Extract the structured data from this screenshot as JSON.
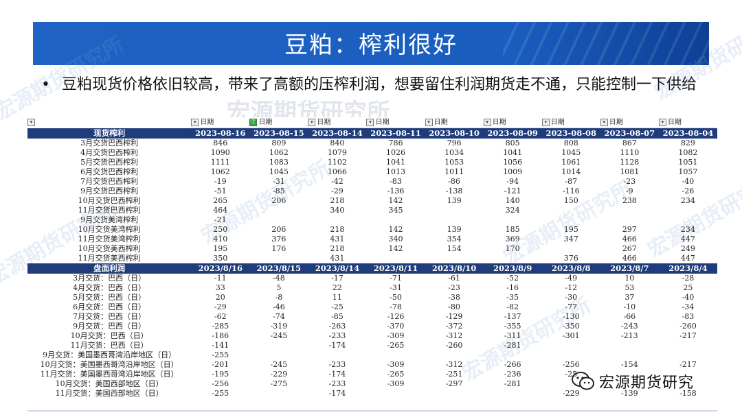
{
  "slide": {
    "title": "豆粕：榨利很好",
    "bullet": "豆粕现货价格依旧较高，带来了高额的压榨利润，想要留住利润期货走不通，只能控制一下供给",
    "watermark": "宏源期货研究所",
    "logo_text": "宏源期货研究"
  },
  "table": {
    "filter_label": "日期",
    "spot_header": "现货榨利",
    "spot_dates": [
      "2023-08-16",
      "2023-08-15",
      "2023-08-14",
      "2023-08-11",
      "2023-08-10",
      "2023-08-09",
      "2023-08-08",
      "2023-08-07",
      "2023-08-04"
    ],
    "spot_rows": [
      {
        "label": "3月交货巴西榨利",
        "values": [
          "846",
          "809",
          "840",
          "786",
          "796",
          "805",
          "808",
          "867",
          "829"
        ]
      },
      {
        "label": "4月交货巴西榨利",
        "values": [
          "1090",
          "1062",
          "1079",
          "1026",
          "1034",
          "1041",
          "1045",
          "1110",
          "1082"
        ]
      },
      {
        "label": "5月交货巴西榨利",
        "values": [
          "1111",
          "1083",
          "1102",
          "1041",
          "1053",
          "1056",
          "1061",
          "1128",
          "1051"
        ]
      },
      {
        "label": "6月交货巴西榨利",
        "values": [
          "1062",
          "1045",
          "1066",
          "1013",
          "1011",
          "1009",
          "1014",
          "1081",
          "1057"
        ]
      },
      {
        "label": "7月交货巴西榨利",
        "values": [
          "-19",
          "-31",
          "-42",
          "-83",
          "-86",
          "-94",
          "-87",
          "-23",
          "-40"
        ]
      },
      {
        "label": "9月交货巴西榨利",
        "values": [
          "-51",
          "-85",
          "-29",
          "-136",
          "-138",
          "-121",
          "-116",
          "-9",
          "-26"
        ]
      },
      {
        "label": "10月交货巴西榨利",
        "values": [
          "265",
          "206",
          "218",
          "142",
          "139",
          "140",
          "150",
          "238",
          "234"
        ]
      },
      {
        "label": "11月交货巴西榨利",
        "values": [
          "464",
          "",
          "340",
          "345",
          "",
          "324",
          "",
          "",
          ""
        ]
      },
      {
        "label": "9月交货美湾榨利",
        "values": [
          "-21",
          "",
          "",
          "",
          "",
          "",
          "",
          "",
          ""
        ]
      },
      {
        "label": "10月交货美湾榨利",
        "values": [
          "250",
          "206",
          "218",
          "142",
          "139",
          "185",
          "195",
          "297",
          "234"
        ]
      },
      {
        "label": "11月交货美湾榨利",
        "values": [
          "410",
          "376",
          "431",
          "340",
          "354",
          "369",
          "347",
          "466",
          "447"
        ]
      },
      {
        "label": "10月交货美西榨利",
        "values": [
          "195",
          "176",
          "218",
          "142",
          "154",
          "170",
          "",
          "267",
          "249"
        ]
      },
      {
        "label": "11月交货美西榨利",
        "values": [
          "350",
          "",
          "431",
          "",
          "",
          "",
          "376",
          "466",
          "447"
        ]
      }
    ],
    "futures_header": "盘面利润",
    "futures_dates": [
      "2023/8/16",
      "2023/8/15",
      "2023/8/14",
      "2023/8/11",
      "2023/8/10",
      "2023/8/9",
      "2023/8/8",
      "2023/8/7",
      "2023/8/4"
    ],
    "futures_rows": [
      {
        "label": "3月交货：巴西（日）",
        "values": [
          "-11",
          "-48",
          "-17",
          "-71",
          "-61",
          "-52",
          "-49",
          "10",
          "-28"
        ]
      },
      {
        "label": "4月交货：巴西（日）",
        "values": [
          "33",
          "5",
          "22",
          "-31",
          "-23",
          "-16",
          "-12",
          "53",
          "25"
        ]
      },
      {
        "label": "5月交货：巴西（日）",
        "values": [
          "20",
          "-8",
          "11",
          "-50",
          "-38",
          "-35",
          "-30",
          "37",
          "-40"
        ]
      },
      {
        "label": "6月交货：巴西（日）",
        "values": [
          "-29",
          "-46",
          "-25",
          "-78",
          "-80",
          "-82",
          "-77",
          "-10",
          "-34"
        ]
      },
      {
        "label": "7月交货：巴西（日）",
        "values": [
          "-62",
          "-74",
          "-85",
          "-126",
          "-129",
          "-137",
          "-130",
          "-66",
          "-83"
        ]
      },
      {
        "label": "9月交货：巴西（日）",
        "values": [
          "-285",
          "-319",
          "-263",
          "-370",
          "-372",
          "-355",
          "-350",
          "-243",
          "-260"
        ]
      },
      {
        "label": "10月交货：巴西（日）",
        "values": [
          "-186",
          "-245",
          "-233",
          "-309",
          "-312",
          "-311",
          "-301",
          "-213",
          "-217"
        ]
      },
      {
        "label": "11月交货：巴西（日）",
        "values": [
          "-141",
          "",
          "-174",
          "-265",
          "-260",
          "-281",
          "",
          "",
          ""
        ]
      },
      {
        "label": "9月交货：美国墨西哥湾沿岸地区（日）",
        "values": [
          "-255",
          "",
          "",
          "",
          "",
          "",
          "",
          "",
          ""
        ]
      },
      {
        "label": "10月交货：美国墨西哥湾沿岸地区（日）",
        "values": [
          "-201",
          "-245",
          "-233",
          "-309",
          "-312",
          "-266",
          "-256",
          "-154",
          "-217"
        ]
      },
      {
        "label": "11月交货：美国墨西哥湾沿岸地区（日）",
        "values": [
          "-195",
          "-229",
          "-174",
          "-265",
          "-251",
          "-236",
          "-25",
          "",
          ""
        ]
      },
      {
        "label": "10月交货：美国西部地区（日）",
        "values": [
          "-256",
          "-275",
          "-233",
          "-309",
          "-297",
          "-281",
          "",
          "",
          ""
        ]
      },
      {
        "label": "11月交货：美国西部地区（日）",
        "values": [
          "-255",
          "",
          "-174",
          "",
          "",
          "",
          "-229",
          "-139",
          "-158"
        ]
      }
    ]
  },
  "colors": {
    "banner": "#1e63c4",
    "table_header": "#1f3c7c",
    "logo_green": "#3aa84a"
  }
}
